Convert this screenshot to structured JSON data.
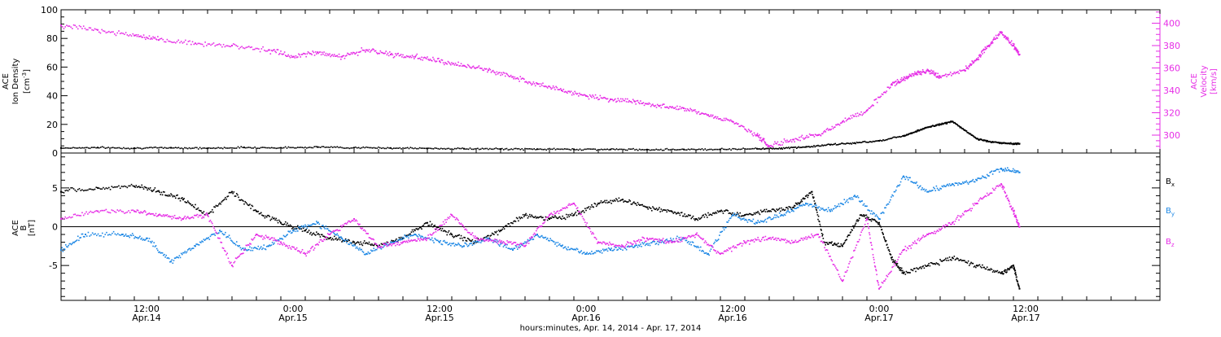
{
  "colors": {
    "density": "#000000",
    "velocity": "#e62ee6",
    "bx": "#000000",
    "by": "#1e88e5",
    "bz": "#e62ee6",
    "axis": "#000000"
  },
  "chart_data": [
    {
      "type": "scatter",
      "panel": "top",
      "xlim": [
        "2014-04-14T05:00",
        "2014-04-17T23:00"
      ],
      "left_axis": {
        "label_lines": [
          "ACE",
          "Ion Density"
        ],
        "unit_text": "[cm",
        "unit_sup": "-3",
        "unit_close": "]",
        "ylim": [
          0,
          100
        ],
        "ticks": [
          "0",
          "20",
          "40",
          "60",
          "80",
          "100"
        ]
      },
      "right_axis": {
        "label_lines": [
          "ACE",
          "Velocity",
          "[km/s]"
        ],
        "ylim": [
          284,
          412
        ],
        "ticks": [
          "300",
          "320",
          "340",
          "360",
          "380",
          "400"
        ]
      },
      "series": [
        {
          "key": "density",
          "axis": "left",
          "points": [
            [
              "2014-04-14T05:00",
              3.5
            ],
            [
              "2014-04-14T08:00",
              3.8
            ],
            [
              "2014-04-14T11:00",
              3.4
            ],
            [
              "2014-04-14T14:00",
              3.7
            ],
            [
              "2014-04-14T17:00",
              3.3
            ],
            [
              "2014-04-14T20:00",
              3.9
            ],
            [
              "2014-04-14T23:00",
              3.6
            ],
            [
              "2014-04-15T02:00",
              4.2
            ],
            [
              "2014-04-15T05:00",
              3.7
            ],
            [
              "2014-04-15T08:00",
              3.5
            ],
            [
              "2014-04-15T11:00",
              3.2
            ],
            [
              "2014-04-15T14:00",
              3.0
            ],
            [
              "2014-04-15T17:00",
              2.8
            ],
            [
              "2014-04-15T20:00",
              2.7
            ],
            [
              "2014-04-15T23:00",
              2.6
            ],
            [
              "2014-04-16T02:00",
              2.5
            ],
            [
              "2014-04-16T05:00",
              2.4
            ],
            [
              "2014-04-16T08:00",
              2.5
            ],
            [
              "2014-04-16T11:00",
              2.6
            ],
            [
              "2014-04-16T14:00",
              3.0
            ],
            [
              "2014-04-16T16:00",
              3.3
            ],
            [
              "2014-04-16T18:00",
              4.2
            ],
            [
              "2014-04-16T20:00",
              5.8
            ],
            [
              "2014-04-16T22:00",
              7.0
            ],
            [
              "2014-04-17T00:00",
              8.5
            ],
            [
              "2014-04-17T02:00",
              12.0
            ],
            [
              "2014-04-17T03:00",
              15.0
            ],
            [
              "2014-04-17T04:00",
              18.0
            ],
            [
              "2014-04-17T05:00",
              20.0
            ],
            [
              "2014-04-17T06:00",
              22.0
            ],
            [
              "2014-04-17T07:00",
              16.0
            ],
            [
              "2014-04-17T08:00",
              10.0
            ],
            [
              "2014-04-17T09:00",
              8.0
            ],
            [
              "2014-04-17T10:00",
              7.0
            ],
            [
              "2014-04-17T11:00",
              6.5
            ],
            [
              "2014-04-17T11:30",
              6.5
            ]
          ]
        },
        {
          "key": "velocity",
          "axis": "right",
          "points": [
            [
              "2014-04-14T05:00",
              398
            ],
            [
              "2014-04-14T08:00",
              394
            ],
            [
              "2014-04-14T11:00",
              389
            ],
            [
              "2014-04-14T13:00",
              385
            ],
            [
              "2014-04-14T16:00",
              382
            ],
            [
              "2014-04-14T19:00",
              380
            ],
            [
              "2014-04-14T22:00",
              376
            ],
            [
              "2014-04-15T00:00",
              370
            ],
            [
              "2014-04-15T02:00",
              374
            ],
            [
              "2014-04-15T04:00",
              370
            ],
            [
              "2014-04-15T06:00",
              376
            ],
            [
              "2014-04-15T08:00",
              372
            ],
            [
              "2014-04-15T10:00",
              370
            ],
            [
              "2014-04-15T12:00",
              366
            ],
            [
              "2014-04-15T14:00",
              362
            ],
            [
              "2014-04-15T16:00",
              358
            ],
            [
              "2014-04-15T18:00",
              352
            ],
            [
              "2014-04-15T20:00",
              346
            ],
            [
              "2014-04-15T22:00",
              340
            ],
            [
              "2014-04-16T00:00",
              335
            ],
            [
              "2014-04-16T02:00",
              332
            ],
            [
              "2014-04-16T04:00",
              330
            ],
            [
              "2014-04-16T06:00",
              326
            ],
            [
              "2014-04-16T08:00",
              324
            ],
            [
              "2014-04-16T10:00",
              318
            ],
            [
              "2014-04-16T12:00",
              312
            ],
            [
              "2014-04-16T14:00",
              300
            ],
            [
              "2014-04-16T15:00",
              290
            ],
            [
              "2014-04-16T17:00",
              296
            ],
            [
              "2014-04-16T19:00",
              300
            ],
            [
              "2014-04-16T21:00",
              312
            ],
            [
              "2014-04-16T23:00",
              322
            ],
            [
              "2014-04-17T01:00",
              345
            ],
            [
              "2014-04-17T02:00",
              350
            ],
            [
              "2014-04-17T03:00",
              355
            ],
            [
              "2014-04-17T04:00",
              358
            ],
            [
              "2014-04-17T05:00",
              352
            ],
            [
              "2014-04-17T07:00",
              358
            ],
            [
              "2014-04-17T08:00",
              368
            ],
            [
              "2014-04-17T09:00",
              380
            ],
            [
              "2014-04-17T10:00",
              392
            ],
            [
              "2014-04-17T11:00",
              380
            ],
            [
              "2014-04-17T11:30",
              372
            ]
          ]
        }
      ]
    },
    {
      "type": "scatter",
      "panel": "bottom",
      "xlim": [
        "2014-04-14T05:00",
        "2014-04-17T23:00"
      ],
      "left_axis": {
        "label_lines": [
          "ACE",
          "B",
          "[nT]"
        ],
        "ylim": [
          -9.5,
          9.5
        ],
        "ticks": [
          "-5",
          "0",
          "5"
        ]
      },
      "legend": {
        "placement": "right",
        "items": [
          {
            "key": "bx",
            "base": "B",
            "sub": "x"
          },
          {
            "key": "by",
            "base": "B",
            "sub": "y"
          },
          {
            "key": "bz",
            "base": "B",
            "sub": "z"
          }
        ]
      },
      "series": [
        {
          "key": "bx",
          "points": [
            [
              "2014-04-14T05:00",
              4.5
            ],
            [
              "2014-04-14T08:00",
              5.0
            ],
            [
              "2014-04-14T11:00",
              5.2
            ],
            [
              "2014-04-14T13:00",
              4.6
            ],
            [
              "2014-04-14T15:00",
              3.5
            ],
            [
              "2014-04-14T17:00",
              1.5
            ],
            [
              "2014-04-14T19:00",
              4.5
            ],
            [
              "2014-04-14T21:00",
              2.0
            ],
            [
              "2014-04-14T23:00",
              0.5
            ],
            [
              "2014-04-15T01:00",
              -0.5
            ],
            [
              "2014-04-15T03:00",
              -1.5
            ],
            [
              "2014-04-15T05:00",
              -2.0
            ],
            [
              "2014-04-15T07:00",
              -2.5
            ],
            [
              "2014-04-15T09:00",
              -1.5
            ],
            [
              "2014-04-15T11:00",
              0.5
            ],
            [
              "2014-04-15T13:00",
              -1.0
            ],
            [
              "2014-04-15T15:00",
              -2.0
            ],
            [
              "2014-04-15T17:00",
              -0.5
            ],
            [
              "2014-04-15T19:00",
              1.5
            ],
            [
              "2014-04-15T21:00",
              1.0
            ],
            [
              "2014-04-15T23:00",
              1.5
            ],
            [
              "2014-04-16T01:00",
              3.0
            ],
            [
              "2014-04-16T03:00",
              3.5
            ],
            [
              "2014-04-16T05:00",
              2.5
            ],
            [
              "2014-04-16T07:00",
              2.0
            ],
            [
              "2014-04-16T09:00",
              1.0
            ],
            [
              "2014-04-16T11:00",
              2.0
            ],
            [
              "2014-04-16T13:00",
              1.5
            ],
            [
              "2014-04-16T15:00",
              2.0
            ],
            [
              "2014-04-16T17:00",
              2.5
            ],
            [
              "2014-04-16T18:30",
              4.5
            ],
            [
              "2014-04-16T19:30",
              -2.0
            ],
            [
              "2014-04-16T21:00",
              -2.5
            ],
            [
              "2014-04-16T22:30",
              1.5
            ],
            [
              "2014-04-17T00:00",
              0.5
            ],
            [
              "2014-04-17T01:00",
              -4.0
            ],
            [
              "2014-04-17T02:00",
              -6.0
            ],
            [
              "2014-04-17T04:00",
              -5.0
            ],
            [
              "2014-04-17T06:00",
              -4.0
            ],
            [
              "2014-04-17T08:00",
              -5.0
            ],
            [
              "2014-04-17T10:00",
              -6.0
            ],
            [
              "2014-04-17T11:00",
              -5.0
            ],
            [
              "2014-04-17T11:30",
              -8.0
            ]
          ]
        },
        {
          "key": "by",
          "points": [
            [
              "2014-04-14T05:00",
              -3.0
            ],
            [
              "2014-04-14T07:00",
              -1.0
            ],
            [
              "2014-04-14T10:00",
              -1.0
            ],
            [
              "2014-04-14T12:00",
              -1.5
            ],
            [
              "2014-04-14T14:00",
              -4.5
            ],
            [
              "2014-04-14T16:00",
              -2.5
            ],
            [
              "2014-04-14T18:00",
              -0.5
            ],
            [
              "2014-04-14T20:00",
              -3.0
            ],
            [
              "2014-04-14T22:00",
              -2.5
            ],
            [
              "2014-04-15T00:00",
              -0.5
            ],
            [
              "2014-04-15T02:00",
              0.5
            ],
            [
              "2014-04-15T04:00",
              -1.5
            ],
            [
              "2014-04-15T06:00",
              -3.5
            ],
            [
              "2014-04-15T08:00",
              -2.0
            ],
            [
              "2014-04-15T10:00",
              -1.0
            ],
            [
              "2014-04-15T12:00",
              -2.0
            ],
            [
              "2014-04-15T14:00",
              -2.5
            ],
            [
              "2014-04-15T16:00",
              -1.5
            ],
            [
              "2014-04-15T18:00",
              -3.0
            ],
            [
              "2014-04-15T20:00",
              -1.0
            ],
            [
              "2014-04-15T22:00",
              -2.5
            ],
            [
              "2014-04-16T00:00",
              -3.5
            ],
            [
              "2014-04-16T02:00",
              -3.0
            ],
            [
              "2014-04-16T04:00",
              -2.5
            ],
            [
              "2014-04-16T06:00",
              -2.0
            ],
            [
              "2014-04-16T08:00",
              -1.5
            ],
            [
              "2014-04-16T10:00",
              -3.5
            ],
            [
              "2014-04-16T12:00",
              1.5
            ],
            [
              "2014-04-16T14:00",
              0.5
            ],
            [
              "2014-04-16T16:00",
              1.5
            ],
            [
              "2014-04-16T18:00",
              3.0
            ],
            [
              "2014-04-16T20:00",
              2.0
            ],
            [
              "2014-04-16T22:00",
              4.0
            ],
            [
              "2014-04-17T00:00",
              1.0
            ],
            [
              "2014-04-17T02:00",
              6.5
            ],
            [
              "2014-04-17T04:00",
              4.5
            ],
            [
              "2014-04-17T06:00",
              5.5
            ],
            [
              "2014-04-17T08:00",
              6.0
            ],
            [
              "2014-04-17T10:00",
              7.5
            ],
            [
              "2014-04-17T11:30",
              7.0
            ]
          ]
        },
        {
          "key": "bz",
          "points": [
            [
              "2014-04-14T05:00",
              1.0
            ],
            [
              "2014-04-14T08:00",
              2.0
            ],
            [
              "2014-04-14T11:00",
              2.0
            ],
            [
              "2014-04-14T13:00",
              1.5
            ],
            [
              "2014-04-14T15:00",
              1.0
            ],
            [
              "2014-04-14T17:00",
              1.5
            ],
            [
              "2014-04-14T19:00",
              -5.0
            ],
            [
              "2014-04-14T21:00",
              -1.0
            ],
            [
              "2014-04-14T23:00",
              -2.0
            ],
            [
              "2014-04-15T01:00",
              -3.5
            ],
            [
              "2014-04-15T03:00",
              -1.0
            ],
            [
              "2014-04-15T05:00",
              1.0
            ],
            [
              "2014-04-15T07:00",
              -2.5
            ],
            [
              "2014-04-15T09:00",
              -2.0
            ],
            [
              "2014-04-15T11:00",
              -1.5
            ],
            [
              "2014-04-15T13:00",
              1.5
            ],
            [
              "2014-04-15T15:00",
              -1.5
            ],
            [
              "2014-04-15T17:00",
              -2.0
            ],
            [
              "2014-04-15T19:00",
              -2.5
            ],
            [
              "2014-04-15T21:00",
              1.5
            ],
            [
              "2014-04-15T23:00",
              3.0
            ],
            [
              "2014-04-16T01:00",
              -2.0
            ],
            [
              "2014-04-16T03:00",
              -2.5
            ],
            [
              "2014-04-16T05:00",
              -1.5
            ],
            [
              "2014-04-16T07:00",
              -2.0
            ],
            [
              "2014-04-16T09:00",
              -1.0
            ],
            [
              "2014-04-16T11:00",
              -3.5
            ],
            [
              "2014-04-16T13:00",
              -2.0
            ],
            [
              "2014-04-16T15:00",
              -1.5
            ],
            [
              "2014-04-16T17:00",
              -2.0
            ],
            [
              "2014-04-16T19:00",
              -1.0
            ],
            [
              "2014-04-16T21:00",
              -7.0
            ],
            [
              "2014-04-16T23:00",
              1.0
            ],
            [
              "2014-04-17T00:00",
              -8.0
            ],
            [
              "2014-04-17T02:00",
              -3.0
            ],
            [
              "2014-04-17T04:00",
              -1.0
            ],
            [
              "2014-04-17T06:00",
              0.5
            ],
            [
              "2014-04-17T08:00",
              3.0
            ],
            [
              "2014-04-17T10:00",
              5.5
            ],
            [
              "2014-04-17T11:00",
              2.0
            ],
            [
              "2014-04-17T11:30",
              0.0
            ]
          ]
        }
      ]
    }
  ],
  "x_axis": {
    "ticks": [
      {
        "time": "2014-04-14T12:00",
        "time_label": "12:00",
        "date_label": "Apr.14"
      },
      {
        "time": "2014-04-15T00:00",
        "time_label": "0:00",
        "date_label": "Apr.15"
      },
      {
        "time": "2014-04-15T12:00",
        "time_label": "12:00",
        "date_label": "Apr.15"
      },
      {
        "time": "2014-04-16T00:00",
        "time_label": "0:00",
        "date_label": "Apr.16"
      },
      {
        "time": "2014-04-16T12:00",
        "time_label": "12:00",
        "date_label": "Apr.16"
      },
      {
        "time": "2014-04-17T00:00",
        "time_label": "0:00",
        "date_label": "Apr.17"
      },
      {
        "time": "2014-04-17T12:00",
        "time_label": "12:00",
        "date_label": "Apr.17"
      }
    ],
    "title": "hours:minutes, Apr. 14, 2014 - Apr. 17, 2014"
  }
}
